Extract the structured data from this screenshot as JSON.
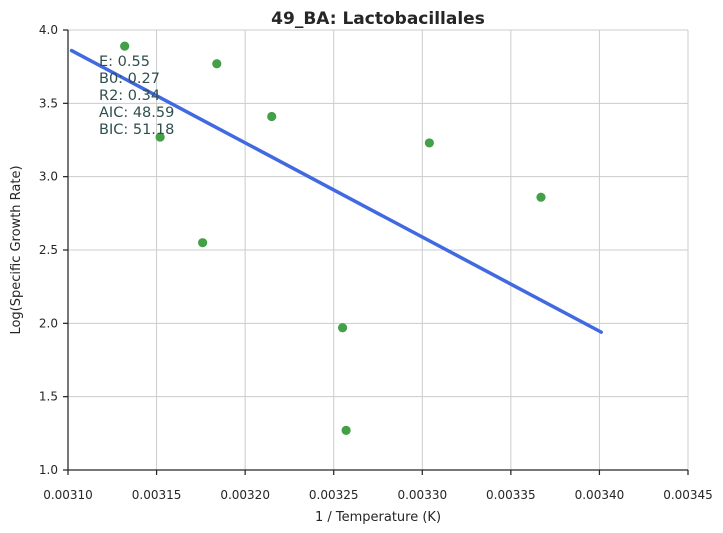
{
  "chart_data": {
    "type": "scatter",
    "title": "49_BA: Lactobacillales",
    "xlabel": "1 / Temperature (K)",
    "ylabel": "Log(Specific Growth Rate)",
    "xlim": [
      0.0031,
      0.00345
    ],
    "ylim": [
      1.0,
      4.0
    ],
    "xticks": [
      "0.00310",
      "0.00315",
      "0.00320",
      "0.00325",
      "0.00330",
      "0.00335",
      "0.00340",
      "0.00345"
    ],
    "yticks": [
      "1.0",
      "1.5",
      "2.0",
      "2.5",
      "3.0",
      "3.5",
      "4.0"
    ],
    "grid": true,
    "points": {
      "x": [
        0.003132,
        0.003152,
        0.003176,
        0.003184,
        0.003215,
        0.003255,
        0.003257,
        0.003304,
        0.003367
      ],
      "y": [
        3.89,
        3.27,
        2.55,
        3.77,
        3.41,
        1.97,
        1.27,
        3.23,
        2.86
      ],
      "color": "#43a047"
    },
    "fit_line": {
      "x": [
        0.003102,
        0.003401
      ],
      "y": [
        3.86,
        1.94
      ],
      "color": "#4169e1"
    },
    "annotations": [
      "E:  0.55",
      "B0:  0.27",
      "R2:  0.34",
      "AIC: 48.59",
      "BIC: 51.18"
    ]
  }
}
